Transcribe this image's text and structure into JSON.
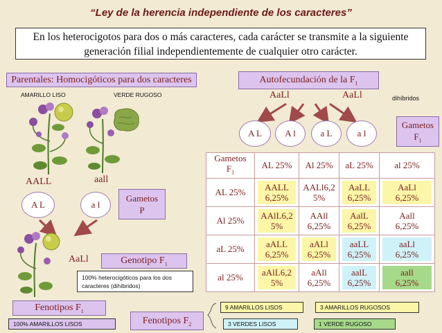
{
  "title": "“Ley de la herencia independiente de los caracteres”",
  "intro_line1": "En los heterocigotos para dos o más caracteres, cada carácter se transmite a la siguiente",
  "intro_line2": "generación filial independientemente de cualquier otro carácter.",
  "parentales_label": "Parentales: Homocigóticos para dos caracteres",
  "amarillo_liso": "AMARILLO LISO",
  "verde_rugoso": "VERDE RUGOSO",
  "genotype_aall_dom": "AALL",
  "genotype_aall_rec": "aall",
  "gamete_AL": "A L",
  "gamete_al": "a l",
  "gametos_p_line1": "Gametos",
  "gametos_p_line2": "P",
  "offspring_genotype": "AaLl",
  "genotipo_f1": "Genotipo F",
  "genotipo_f1_sub": "1",
  "f1_note_line1": "100% heterocigóticos para los dos",
  "f1_note_line2": "caracteres (dihíbridos)",
  "fenotipos_f1": "Fenotipos F",
  "fenotipos_f1_sub": "1",
  "f1_result": "100% AMARILLOS   LISOS",
  "autofecundacion": "Autofecundación  de la  F",
  "autofecundacion_sub": "1",
  "self_left": "AaLl",
  "self_right": "AaLl",
  "dihibridos": "dihíbridos",
  "f1_gametes": [
    "A L",
    "A l",
    "a L",
    "a l"
  ],
  "gametos_f1_line1": "Gametos",
  "gametos_f1_line2": "F",
  "gametos_f1_sub": "1",
  "punnett": {
    "corner_line1": "Gametos",
    "corner_line2": "F",
    "corner_sub": "1",
    "cols": [
      "AL 25%",
      "Al 25%",
      "aL 25%",
      "al 25%"
    ],
    "rows": [
      {
        "label": "AL 25%",
        "cells": [
          [
            "AALL",
            "6,25%"
          ],
          [
            "AALl6,2",
            "5%"
          ],
          [
            "AaLL",
            "6,25%"
          ],
          [
            "AaLl",
            "6,25%"
          ]
        ],
        "colors": [
          "yellow",
          "none",
          "yellow",
          "yellow"
        ]
      },
      {
        "label": "Al 25%",
        "cells": [
          [
            "AAlL6,2",
            "5%"
          ],
          [
            "AAll",
            "6,25%"
          ],
          [
            "AalL",
            "6,25%"
          ],
          [
            "Aall",
            "6,25%"
          ]
        ],
        "colors": [
          "yellow",
          "none",
          "yellow",
          "none"
        ]
      },
      {
        "label": "aL 25%",
        "cells": [
          [
            "aALL",
            "6,25%"
          ],
          [
            "aALl",
            "6,25%"
          ],
          [
            "aaLL",
            "6,25%"
          ],
          [
            "aaLl",
            "6,25%"
          ]
        ],
        "colors": [
          "yellow",
          "yellow",
          "cyan",
          "cyan"
        ]
      },
      {
        "label": "al 25%",
        "cells": [
          [
            "aAlL6,2",
            "5%"
          ],
          [
            "aAll",
            "6,25%"
          ],
          [
            "aalL",
            "6,25%"
          ],
          [
            "aall",
            "6,25%"
          ]
        ],
        "colors": [
          "yellow",
          "none",
          "cyan",
          "green"
        ]
      }
    ]
  },
  "fenotipos_f2": "Fenotipos F",
  "fenotipos_f2_sub": "2",
  "f2_results": {
    "amarillos_lisos": "9 AMARILLOS LISOS",
    "amarillos_rugosos": "3 AMARILLOS RUGOSOS",
    "verdes_lisos": "3 VERDES LISOS",
    "verde_rugoso": "1 VERDE RUGOSO"
  },
  "colors": {
    "background": "#f2ead3",
    "lavender": "#dcc4ee",
    "yellow": "#fbf6a8",
    "cyan": "#cff2f8",
    "green": "#a6d98a",
    "arrow": "#a04a4a"
  }
}
